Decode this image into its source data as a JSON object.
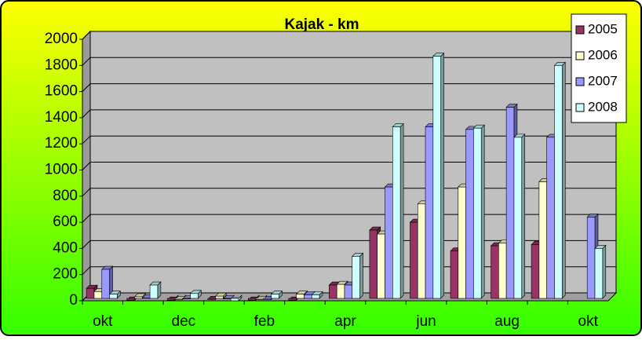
{
  "chart_data": {
    "type": "bar",
    "title": "Kajak - km",
    "categories": [
      "okt",
      null,
      "dec",
      null,
      "feb",
      null,
      "apr",
      null,
      "jun",
      null,
      "aug",
      null,
      "okt"
    ],
    "series": [
      {
        "name": "2005",
        "color": "#993366",
        "values": [
          95,
          5,
          5,
          10,
          5,
          5,
          120,
          540,
          600,
          380,
          420,
          430,
          null
        ]
      },
      {
        "name": "2006",
        "color": "#ffffcc",
        "values": [
          70,
          30,
          10,
          35,
          10,
          50,
          125,
          510,
          740,
          870,
          440,
          910,
          null
        ]
      },
      {
        "name": "2007",
        "color": "#9999ff",
        "values": [
          240,
          20,
          15,
          15,
          10,
          45,
          120,
          870,
          1330,
          1310,
          1480,
          1250,
          640
        ]
      },
      {
        "name": "2008",
        "color": "#ccffff",
        "values": [
          50,
          120,
          55,
          0,
          50,
          45,
          340,
          1330,
          1870,
          1320,
          1250,
          1800,
          400
        ]
      }
    ],
    "ylim": [
      0,
      2000
    ],
    "yticks": [
      0,
      200,
      400,
      600,
      800,
      1000,
      1200,
      1400,
      1600,
      1800,
      2000
    ],
    "grid": true,
    "legend": "top-right"
  }
}
